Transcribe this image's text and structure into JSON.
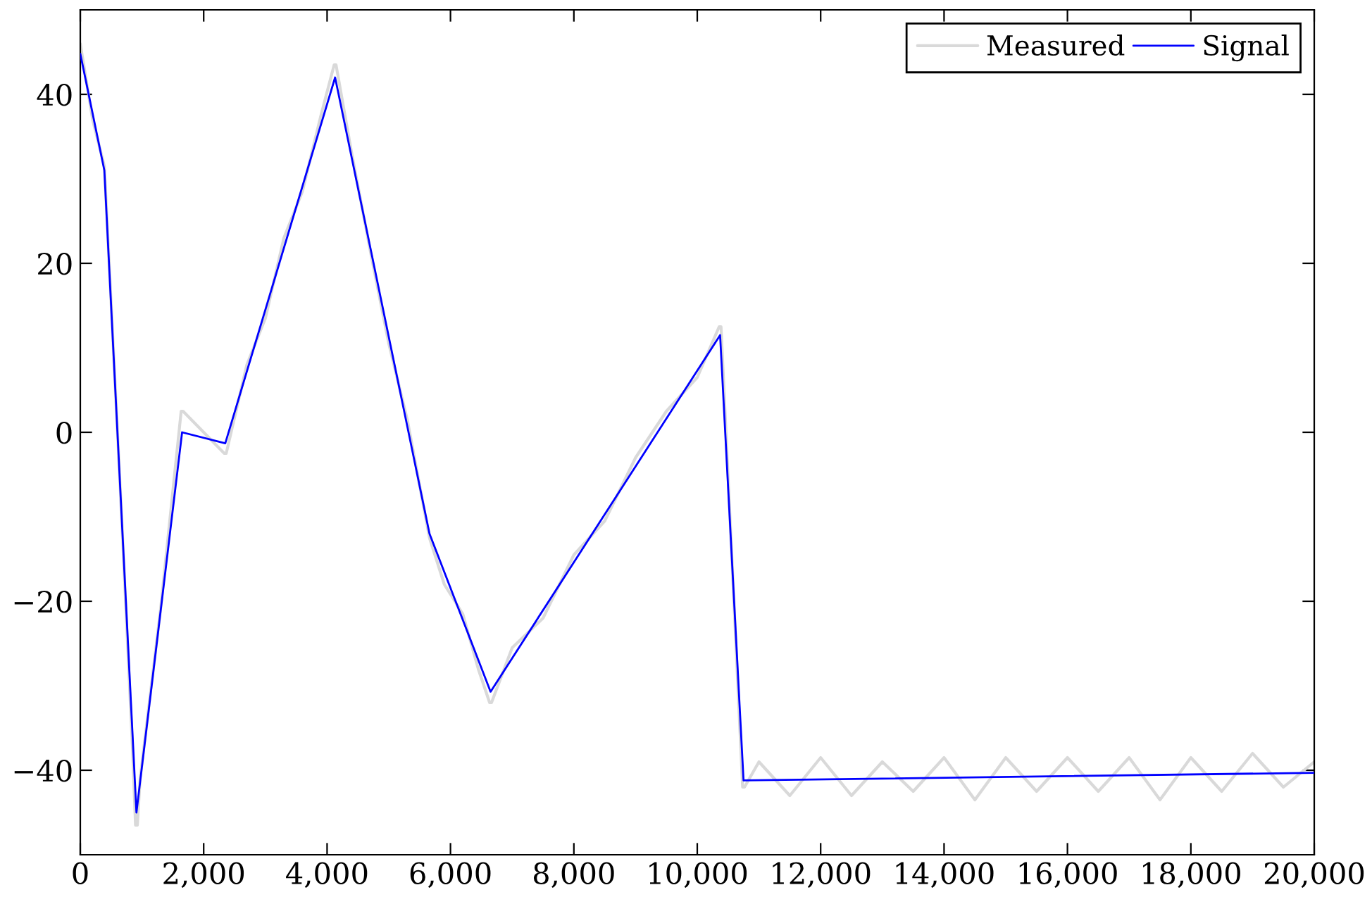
{
  "chart_data": {
    "type": "line",
    "series": [
      {
        "name": "Measured",
        "color": "#d9d9d9",
        "x": [
          0,
          200,
          390,
          650,
          850,
          895,
          925,
          970,
          1300,
          1635,
          1665,
          2335,
          2365,
          2700,
          3000,
          3300,
          3600,
          3900,
          4115,
          4145,
          4400,
          4700,
          5000,
          5300,
          5660,
          5900,
          6200,
          6450,
          6635,
          6665,
          7000,
          7500,
          8000,
          8500,
          9000,
          9500,
          10000,
          10355,
          10385,
          10735,
          10765,
          11000,
          11500,
          12000,
          12500,
          13000,
          13500,
          14000,
          14500,
          15000,
          15500,
          16000,
          16500,
          17000,
          17500,
          18000,
          18500,
          19000,
          19500,
          20000
        ],
        "values": [
          46,
          37,
          31.5,
          -7,
          -38,
          -46.5,
          -46.5,
          -41,
          -21,
          2.5,
          2.5,
          -2.5,
          -2.5,
          8,
          13.5,
          23,
          28.5,
          37.5,
          43.5,
          43.5,
          33,
          21.5,
          10.5,
          1.5,
          -12.5,
          -18,
          -21.5,
          -28,
          -32,
          -32,
          -25.5,
          -22,
          -14.5,
          -10.5,
          -3,
          2.5,
          6.5,
          12.5,
          12.5,
          -42,
          -42,
          -39,
          -43,
          -38.5,
          -43,
          -39,
          -42.5,
          -38.5,
          -43.5,
          -38.5,
          -42.5,
          -38.5,
          -42.5,
          -38.5,
          -43.5,
          -38.5,
          -42.5,
          -38,
          -42,
          -39
        ]
      },
      {
        "name": "Signal",
        "color": "#0000ff",
        "x": [
          0,
          390,
          910,
          1650,
          2350,
          4130,
          5660,
          6650,
          10370,
          10750,
          20000
        ],
        "values": [
          44.8,
          31,
          -45,
          0,
          -1.3,
          42,
          -12,
          -30.7,
          11.5,
          -41.2,
          -40.3
        ]
      }
    ],
    "xlim": [
      0,
      20000
    ],
    "xticks": [
      0,
      {
        "value": 2000,
        "label": "2,000"
      },
      {
        "value": 4000,
        "label": "4,000"
      },
      {
        "value": 6000,
        "label": "6,000"
      },
      {
        "value": 8000,
        "label": "8,000"
      },
      {
        "value": 10000,
        "label": "10,000"
      },
      {
        "value": 12000,
        "label": "12,000"
      },
      {
        "value": 14000,
        "label": "14,000"
      },
      {
        "value": 16000,
        "label": "16,000"
      },
      {
        "value": 18000,
        "label": "18,000"
      },
      {
        "value": 20000,
        "label": "20,000"
      }
    ],
    "ylim": [
      -50,
      50
    ],
    "yticks": [
      {
        "value": -40,
        "label": "−40"
      },
      {
        "value": -20,
        "label": "−20"
      },
      0,
      20,
      40
    ],
    "legend": "top right",
    "grid": false,
    "marker": "none",
    "line_style": "solid"
  }
}
